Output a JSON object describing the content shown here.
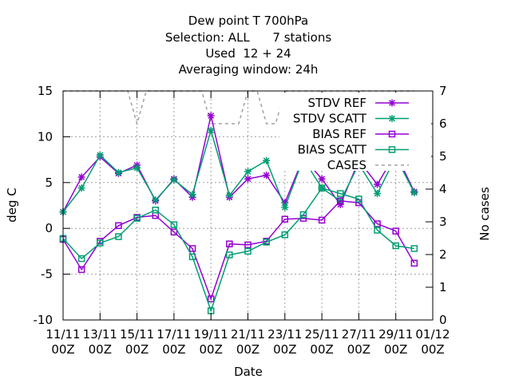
{
  "chart_data": {
    "type": "line",
    "title_lines": [
      "Dew point T 700hPa",
      "Selection: ALL      7 stations",
      "Used  12 + 24",
      "Averaging window: 24h"
    ],
    "xlabel": "Date",
    "ylabel": "deg C",
    "y2label": "No cases",
    "x_tick_labels": [
      [
        "11/11",
        "00Z"
      ],
      [
        "13/11",
        "00Z"
      ],
      [
        "15/11",
        "00Z"
      ],
      [
        "17/11",
        "00Z"
      ],
      [
        "19/11",
        "00Z"
      ],
      [
        "21/11",
        "00Z"
      ],
      [
        "23/11",
        "00Z"
      ],
      [
        "25/11",
        "00Z"
      ],
      [
        "27/11",
        "00Z"
      ],
      [
        "29/11",
        "00Z"
      ],
      [
        "01/12",
        "00Z"
      ]
    ],
    "x_range_days": [
      0,
      20
    ],
    "ylim": [
      -10,
      15
    ],
    "y_ticks": [
      -10,
      -5,
      0,
      5,
      10,
      15
    ],
    "y2lim": [
      0,
      7
    ],
    "y2_ticks": [
      0,
      1,
      2,
      3,
      4,
      5,
      6,
      7
    ],
    "grid": true,
    "legend_position": "top-right",
    "x_days": [
      0,
      1,
      2,
      3,
      4,
      5,
      6,
      7,
      8,
      9,
      10,
      11,
      12,
      13,
      14,
      15,
      16,
      17,
      18,
      19
    ],
    "series": [
      {
        "name": "STDV REF",
        "axis": "y1",
        "color": "#9400d3",
        "marker": "star",
        "values": [
          1.8,
          5.6,
          7.8,
          6.0,
          6.9,
          3.0,
          5.4,
          3.4,
          12.3,
          3.4,
          5.4,
          5.8,
          2.8,
          7.7,
          5.4,
          2.6,
          7.4,
          4.8,
          8.2,
          4.0
        ]
      },
      {
        "name": "STDV SCATT",
        "axis": "y1",
        "color": "#009e73",
        "marker": "star",
        "values": [
          1.8,
          4.4,
          8.0,
          6.1,
          6.6,
          3.1,
          5.3,
          3.7,
          10.7,
          3.6,
          6.2,
          7.4,
          2.3,
          7.6,
          4.4,
          3.0,
          7.0,
          3.8,
          7.8,
          3.9
        ]
      },
      {
        "name": "BIAS REF",
        "axis": "y1",
        "color": "#9400d3",
        "marker": "square",
        "values": [
          -1.2,
          -4.5,
          -1.4,
          0.3,
          1.2,
          1.4,
          -0.4,
          -2.2,
          -7.7,
          -1.7,
          -1.8,
          -1.4,
          1.0,
          1.1,
          0.9,
          3.0,
          2.8,
          0.5,
          -0.3,
          -3.8
        ]
      },
      {
        "name": "BIAS SCATT",
        "axis": "y1",
        "color": "#009e73",
        "marker": "square",
        "values": [
          -1.1,
          -3.3,
          -1.6,
          -0.9,
          1.1,
          2.0,
          0.4,
          -3.1,
          -9.0,
          -2.9,
          -2.5,
          -1.5,
          -0.7,
          1.5,
          4.4,
          3.8,
          3.2,
          -0.2,
          -1.9,
          -2.2
        ]
      },
      {
        "name": "CASES",
        "axis": "y2",
        "color": "#a0a0a0",
        "dashed": true,
        "x_days": [
          0,
          0.5,
          1,
          2,
          3,
          3.5,
          4,
          4.5,
          5,
          6,
          7,
          7.5,
          8,
          8.5,
          9,
          9.5,
          10,
          10.5,
          11,
          11.5,
          12,
          13,
          14,
          15,
          16,
          17,
          18,
          19
        ],
        "values": [
          7,
          7,
          7,
          7,
          7,
          7,
          6,
          7,
          7,
          7,
          7,
          7,
          6,
          6,
          6,
          6,
          7,
          7,
          6,
          6,
          7,
          7,
          7,
          7,
          7,
          7,
          7,
          7
        ]
      }
    ]
  }
}
